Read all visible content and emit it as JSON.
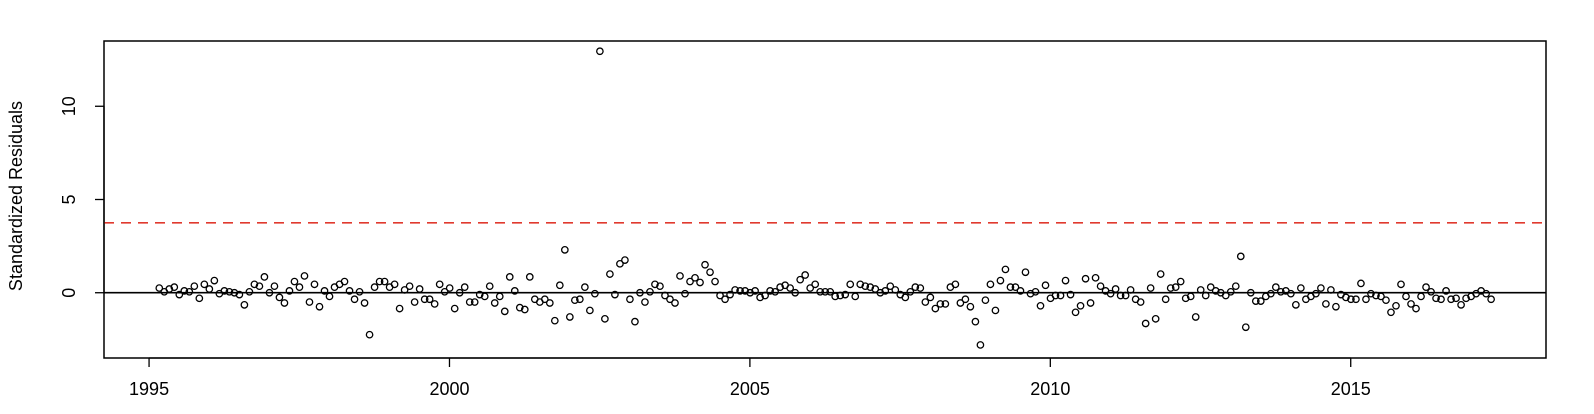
{
  "chart_data": {
    "type": "scatter",
    "title": "",
    "xlabel": "",
    "ylabel": "Standardized Residuals",
    "xlim": [
      1994.25,
      2018.25
    ],
    "ylim": [
      -3.5,
      13.5
    ],
    "x_ticks": [
      1995,
      2000,
      2005,
      2010,
      2015
    ],
    "y_ticks": [
      0,
      5,
      10
    ],
    "grid": false,
    "legend": "none",
    "reference_lines": [
      {
        "kind": "hline",
        "y": 0,
        "color": "#000000",
        "style": "solid"
      },
      {
        "kind": "hline",
        "y": 3.75,
        "color": "#e03a2f",
        "style": "dashed"
      }
    ],
    "series": [
      {
        "marker": "open-circle",
        "color": "#000000",
        "x_start": 1995.17,
        "x_step": 0.0833333,
        "values": [
          0.25,
          0.05,
          0.2,
          0.3,
          -0.1,
          0.1,
          0.05,
          0.35,
          -0.3,
          0.45,
          0.2,
          0.65,
          -0.05,
          0.1,
          0.05,
          0.0,
          -0.1,
          -0.65,
          0.05,
          0.45,
          0.35,
          0.85,
          0.0,
          0.35,
          -0.25,
          -0.55,
          0.1,
          0.6,
          0.3,
          0.9,
          -0.5,
          0.45,
          -0.75,
          0.1,
          -0.2,
          0.3,
          0.45,
          0.6,
          0.1,
          -0.35,
          0.05,
          -0.55,
          -2.25,
          0.3,
          0.6,
          0.6,
          0.3,
          0.45,
          -0.85,
          0.15,
          0.35,
          -0.5,
          0.2,
          -0.35,
          -0.35,
          -0.6,
          0.45,
          0.05,
          0.25,
          -0.85,
          0.0,
          0.3,
          -0.5,
          -0.5,
          -0.1,
          -0.2,
          0.35,
          -0.55,
          -0.2,
          -1.0,
          0.85,
          0.1,
          -0.8,
          -0.9,
          0.85,
          -0.35,
          -0.5,
          -0.35,
          -0.55,
          -1.5,
          0.4,
          2.3,
          -1.3,
          -0.4,
          -0.35,
          0.3,
          -0.95,
          -0.05,
          12.95,
          -1.4,
          1.0,
          -0.1,
          1.55,
          1.75,
          -0.35,
          -1.55,
          0.0,
          -0.5,
          0.05,
          0.45,
          0.35,
          -0.15,
          -0.35,
          -0.55,
          0.9,
          -0.05,
          0.6,
          0.8,
          0.55,
          1.5,
          1.1,
          0.6,
          -0.15,
          -0.35,
          -0.1,
          0.15,
          0.1,
          0.1,
          0.0,
          0.1,
          -0.25,
          -0.15,
          0.1,
          0.05,
          0.3,
          0.4,
          0.25,
          0.0,
          0.7,
          0.95,
          0.25,
          0.45,
          0.05,
          0.05,
          0.05,
          -0.2,
          -0.15,
          -0.1,
          0.45,
          -0.2,
          0.45,
          0.35,
          0.3,
          0.2,
          0.0,
          0.1,
          0.35,
          0.15,
          -0.1,
          -0.25,
          0.05,
          0.3,
          0.25,
          -0.5,
          -0.25,
          -0.85,
          -0.6,
          -0.6,
          0.3,
          0.45,
          -0.55,
          -0.35,
          -0.75,
          -1.55,
          -2.8,
          -0.4,
          0.45,
          -0.95,
          0.65,
          1.25,
          0.3,
          0.3,
          0.1,
          1.1,
          -0.05,
          0.05,
          -0.7,
          0.4,
          -0.3,
          -0.15,
          -0.15,
          0.65,
          -0.1,
          -1.05,
          -0.7,
          0.75,
          -0.55,
          0.8,
          0.35,
          0.1,
          -0.05,
          0.2,
          -0.15,
          -0.15,
          0.15,
          -0.35,
          -0.5,
          -1.65,
          0.25,
          -1.4,
          1.0,
          -0.35,
          0.25,
          0.3,
          0.6,
          -0.3,
          -0.2,
          -1.3,
          0.15,
          -0.15,
          0.3,
          0.1,
          0.0,
          -0.15,
          0.05,
          0.35,
          1.95,
          -1.85,
          0.0,
          -0.45,
          -0.45,
          -0.2,
          -0.05,
          0.3,
          0.05,
          0.1,
          -0.05,
          -0.65,
          0.25,
          -0.35,
          -0.2,
          -0.05,
          0.25,
          -0.6,
          0.15,
          -0.75,
          -0.1,
          -0.25,
          -0.35,
          -0.35,
          0.5,
          -0.35,
          -0.05,
          -0.15,
          -0.2,
          -0.4,
          -1.05,
          -0.7,
          0.45,
          -0.2,
          -0.6,
          -0.85,
          -0.2,
          0.3,
          0.05,
          -0.3,
          -0.35,
          0.1,
          -0.35,
          -0.3,
          -0.65,
          -0.3,
          -0.2,
          -0.05,
          0.1,
          -0.05,
          -0.35
        ]
      }
    ]
  }
}
